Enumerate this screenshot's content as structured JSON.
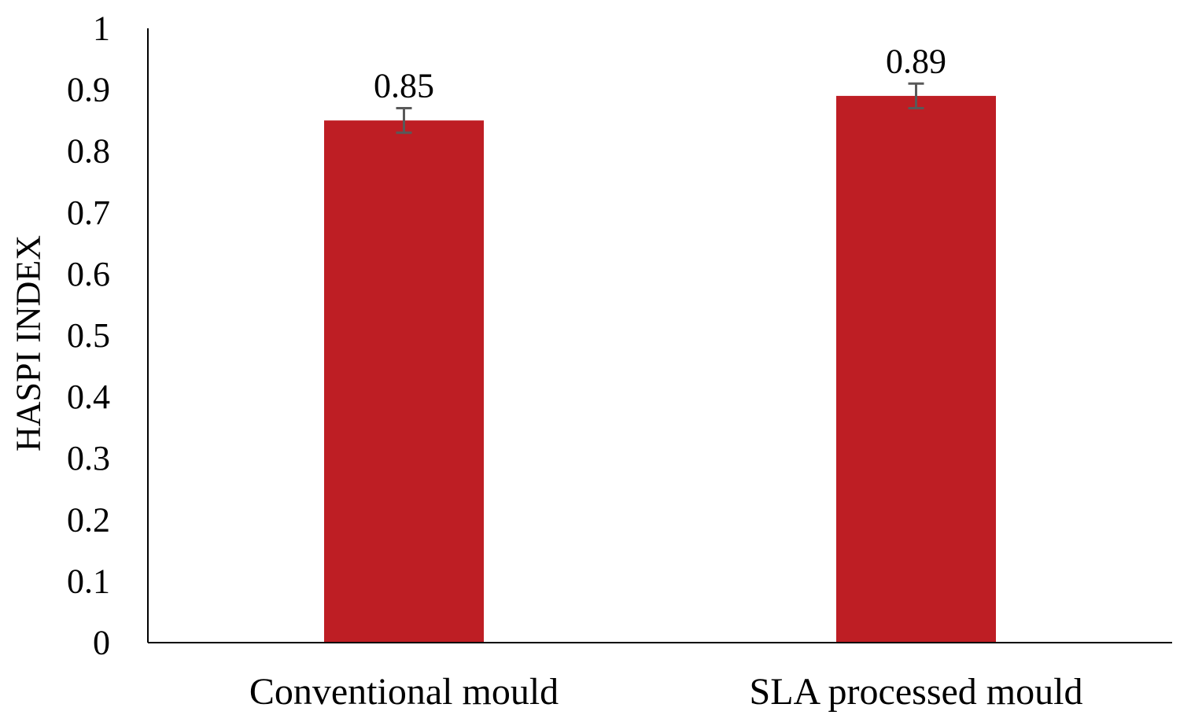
{
  "chart_data": {
    "type": "bar",
    "title": "",
    "xlabel": "",
    "ylabel": "HASPI INDEX",
    "ylim": [
      0,
      1
    ],
    "yticks": [
      "0",
      "0.1",
      "0.2",
      "0.3",
      "0.4",
      "0.5",
      "0.6",
      "0.7",
      "0.8",
      "0.9",
      "1"
    ],
    "categories": [
      "Conventional mould",
      "SLA processed mould"
    ],
    "values": [
      0.85,
      0.89
    ],
    "data_labels": [
      "0.85",
      "0.89"
    ],
    "error": [
      0.02,
      0.02
    ],
    "grid": false,
    "legend": "none",
    "colors": {
      "bar": "#be1e24",
      "error_bar": "#595959",
      "axis": "#000000"
    }
  }
}
